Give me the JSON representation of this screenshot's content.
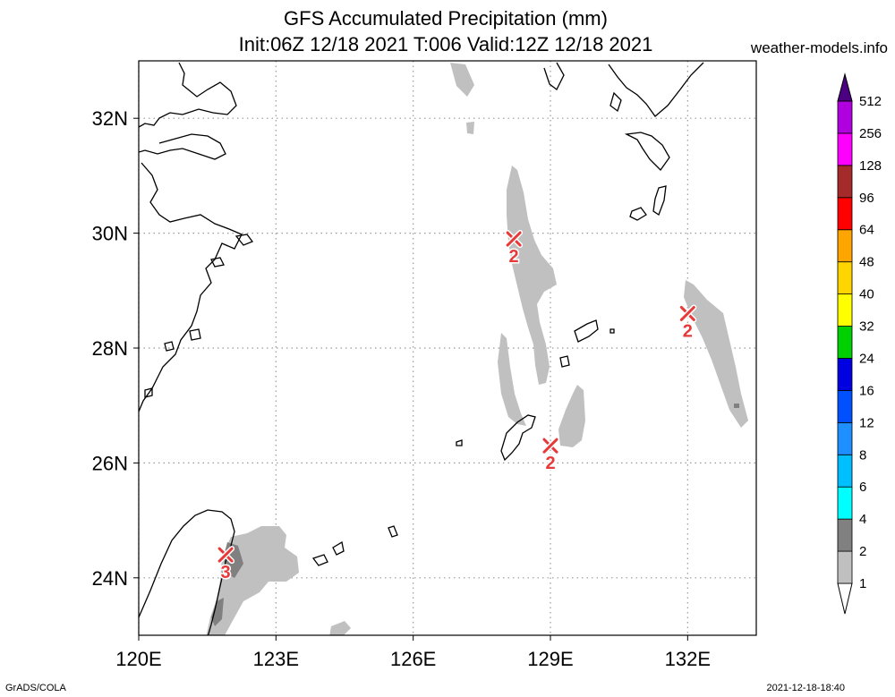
{
  "title": {
    "line1": "GFS Accumulated Precipitation (mm)",
    "line2": "Init:06Z 12/18 2021 T:006 Valid:12Z 12/18 2021"
  },
  "source_site": "weather-models.info",
  "footer": {
    "left": "GrADS/COLA",
    "right": "2021-12-18-18:40"
  },
  "map": {
    "lon_range": [
      120,
      133.5
    ],
    "lat_range": [
      23,
      33
    ],
    "lon_ticks": [
      "120E",
      "123E",
      "126E",
      "129E",
      "132E"
    ],
    "lat_ticks": [
      "24N",
      "26N",
      "28N",
      "30N",
      "32N"
    ],
    "grid": "dotted"
  },
  "colorbar": {
    "levels": [
      "1",
      "2",
      "4",
      "6",
      "8",
      "12",
      "16",
      "24",
      "32",
      "40",
      "48",
      "64",
      "96",
      "128",
      "256",
      "512"
    ],
    "colors": [
      "#c0c0c0",
      "#808080",
      "#00ffff",
      "#00bfff",
      "#1e8fff",
      "#0050ff",
      "#0000e0",
      "#00d000",
      "#ffff00",
      "#ffd500",
      "#ffa500",
      "#ff0000",
      "#a52a2a",
      "#ff00ff",
      "#b000e0",
      "#8000b0",
      "#4b0082"
    ]
  },
  "maxima": [
    {
      "lon": 128.2,
      "lat": 29.9,
      "value": "2"
    },
    {
      "lon": 129.0,
      "lat": 26.3,
      "value": "2"
    },
    {
      "lon": 132.0,
      "lat": 28.6,
      "value": "2"
    },
    {
      "lon": 121.9,
      "lat": 24.4,
      "value": "3"
    }
  ]
}
